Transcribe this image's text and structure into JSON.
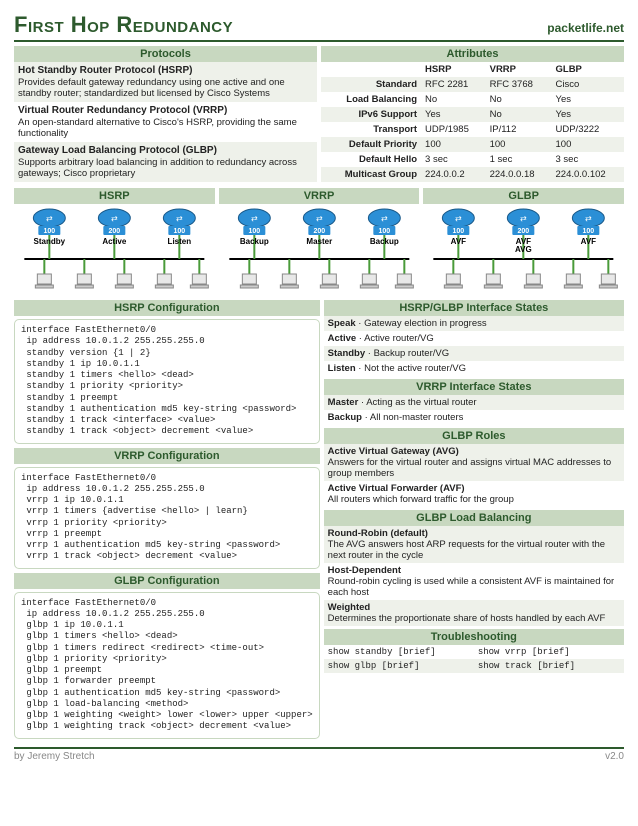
{
  "header": {
    "title": "First Hop Redundancy",
    "site": "packetlife.net"
  },
  "protocols": {
    "title": "Protocols",
    "items": [
      {
        "name": "Hot Standby Router Protocol (HSRP)",
        "desc": "Provides default gateway redundancy using one active and one standby router; standardized but licensed by Cisco Systems"
      },
      {
        "name": "Virtual Router Redundancy Protocol (VRRP)",
        "desc": "An open-standard alternative to Cisco's HSRP, providing the same functionality"
      },
      {
        "name": "Gateway Load Balancing Protocol (GLBP)",
        "desc": "Supports arbitrary load balancing in addition to redundancy across gateways; Cisco proprietary"
      }
    ]
  },
  "attributes": {
    "title": "Attributes",
    "cols": [
      "HSRP",
      "VRRP",
      "GLBP"
    ],
    "rows": [
      {
        "label": "Standard",
        "vals": [
          "RFC 2281",
          "RFC 3768",
          "Cisco"
        ]
      },
      {
        "label": "Load Balancing",
        "vals": [
          "No",
          "No",
          "Yes"
        ]
      },
      {
        "label": "IPv6 Support",
        "vals": [
          "Yes",
          "No",
          "Yes"
        ]
      },
      {
        "label": "Transport",
        "vals": [
          "UDP/1985",
          "IP/112",
          "UDP/3222"
        ]
      },
      {
        "label": "Default Priority",
        "vals": [
          "100",
          "100",
          "100"
        ]
      },
      {
        "label": "Default Hello",
        "vals": [
          "3 sec",
          "1 sec",
          "3 sec"
        ]
      },
      {
        "label": "Multicast Group",
        "vals": [
          "224.0.0.2",
          "224.0.0.18",
          "224.0.0.102"
        ]
      }
    ]
  },
  "topology": {
    "hsrp": {
      "title": "HSRP",
      "priorities": [
        "100",
        "200",
        "100"
      ],
      "roles": [
        "Standby",
        "Active",
        "Listen"
      ]
    },
    "vrrp": {
      "title": "VRRP",
      "priorities": [
        "100",
        "200",
        "100"
      ],
      "roles": [
        "Backup",
        "Master",
        "Backup"
      ]
    },
    "glbp": {
      "title": "GLBP",
      "priorities": [
        "100",
        "200",
        "100"
      ],
      "roles": [
        "AVF",
        "AVF\nAVG",
        "AVF"
      ]
    }
  },
  "configs": {
    "hsrp": {
      "title": "HSRP Configuration",
      "text": "interface FastEthernet0/0\n ip address 10.0.1.2 255.255.255.0\n standby version {1 | 2}\n standby 1 ip 10.0.1.1\n standby 1 timers <hello> <dead>\n standby 1 priority <priority>\n standby 1 preempt\n standby 1 authentication md5 key-string <password>\n standby 1 track <interface> <value>\n standby 1 track <object> decrement <value>"
    },
    "vrrp": {
      "title": "VRRP Configuration",
      "text": "interface FastEthernet0/0\n ip address 10.0.1.2 255.255.255.0\n vrrp 1 ip 10.0.1.1\n vrrp 1 timers {advertise <hello> | learn}\n vrrp 1 priority <priority>\n vrrp 1 preempt\n vrrp 1 authentication md5 key-string <password>\n vrrp 1 track <object> decrement <value>"
    },
    "glbp": {
      "title": "GLBP Configuration",
      "text": "interface FastEthernet0/0\n ip address 10.0.1.2 255.255.255.0\n glbp 1 ip 10.0.1.1\n glbp 1 timers <hello> <dead>\n glbp 1 timers redirect <redirect> <time-out>\n glbp 1 priority <priority>\n glbp 1 preempt\n glbp 1 forwarder preempt\n glbp 1 authentication md5 key-string <password>\n glbp 1 load-balancing <method>\n glbp 1 weighting <weight> lower <lower> upper <upper>\n glbp 1 weighting track <object> decrement <value>"
    }
  },
  "states": {
    "hsrpglbp": {
      "title": "HSRP/GLBP Interface States",
      "items": [
        {
          "k": "Speak",
          "v": "Gateway election in progress"
        },
        {
          "k": "Active",
          "v": "Active router/VG"
        },
        {
          "k": "Standby",
          "v": "Backup router/VG"
        },
        {
          "k": "Listen",
          "v": "Not the active router/VG"
        }
      ]
    },
    "vrrp": {
      "title": "VRRP Interface States",
      "items": [
        {
          "k": "Master",
          "v": "Acting as the virtual router"
        },
        {
          "k": "Backup",
          "v": "All non-master routers"
        }
      ]
    },
    "glbproles": {
      "title": "GLBP Roles",
      "items": [
        {
          "k": "Active Virtual Gateway (AVG)",
          "v": "Answers for the virtual router and assigns virtual MAC addresses to group members",
          "block": true
        },
        {
          "k": "Active Virtual Forwarder (AVF)",
          "v": "All routers which forward traffic for the group",
          "block": true
        }
      ]
    },
    "lb": {
      "title": "GLBP Load Balancing",
      "items": [
        {
          "k": "Round-Robin (default)",
          "v": "The AVG answers host ARP requests for the virtual router with the next router in the cycle",
          "block": true
        },
        {
          "k": "Host-Dependent",
          "v": "Round-robin cycling is used while a consistent AVF is maintained for each host",
          "block": true
        },
        {
          "k": "Weighted",
          "v": "Determines the proportionate share of hosts handled by each AVF",
          "block": true
        }
      ]
    }
  },
  "troubleshooting": {
    "title": "Troubleshooting",
    "cmds": [
      "show standby [brief]",
      "show vrrp [brief]",
      "show glbp [brief]",
      "show track [brief]"
    ]
  },
  "footer": {
    "author": "by Jeremy Stretch",
    "version": "v2.0"
  },
  "colors": {
    "accent": "#2d5a2d",
    "band": "#c8d8c0",
    "alt": "#eef1ea",
    "router": "#2b8fd6",
    "wire": "#4a9b3a"
  }
}
